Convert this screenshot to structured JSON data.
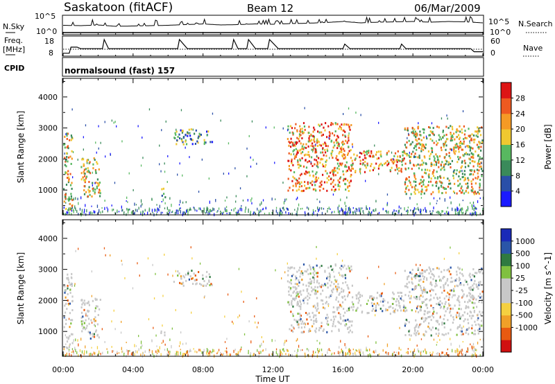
{
  "header": {
    "station": "Saskatoon (fitACF)",
    "beam": "Beam 12",
    "date": "06/Mar/2009"
  },
  "labels": {
    "nsky": "N.Sky",
    "nsearch": "N.Search",
    "freq_line1": "Freq.",
    "freq_line2": "[MHz]",
    "nave": "Nave",
    "cpid": "CPID",
    "cpid_value": "normalsound (fast) 157",
    "noise_ticks_left": [
      "10^5",
      "10^0"
    ],
    "noise_ticks_right": [
      "10^5",
      "10^0"
    ],
    "freq_ticks": [
      "18",
      "8"
    ],
    "nave_ticks": [
      "60",
      "0"
    ]
  },
  "colors": {
    "power": [
      "#1a1aff",
      "#2a4fa8",
      "#3a8a5a",
      "#58b860",
      "#f0c830",
      "#f59a25",
      "#ee5a20",
      "#dd1515"
    ],
    "velocity_bar": [
      "#d01010",
      "#e85a10",
      "#f0a028",
      "#f5d040",
      "#c8c8c8",
      "#c8c8c8",
      "#80c040",
      "#2f7a40",
      "#2a55a8",
      "#1a2ab8"
    ]
  },
  "chart_data": [
    {
      "type": "line",
      "title": "N.Sky / N.Search",
      "ylabel": "N.Sky",
      "log_scale": true,
      "yticks": [
        "10^5",
        "10^0"
      ],
      "x_range_ut_hours": [
        0,
        24
      ],
      "series": [
        {
          "name": "N.Sky",
          "x": [
            0,
            1,
            2,
            3,
            4,
            5,
            6,
            7,
            8,
            9,
            10,
            11,
            12,
            13,
            14,
            15,
            16,
            17,
            18,
            19,
            20,
            21,
            22,
            23,
            24
          ],
          "values": [
            2.5,
            2.4,
            2.6,
            2.2,
            2.3,
            2.4,
            2.5,
            2.7,
            2.9,
            2.6,
            2.7,
            2.9,
            2.8,
            3.0,
            3.1,
            3.3,
            3.6,
            3.2,
            3.4,
            3.5,
            3.6,
            3.4,
            3.6,
            3.5,
            3.2
          ]
        },
        {
          "name": "N.Search",
          "x": [
            0,
            1,
            2,
            3,
            4,
            5,
            6,
            7,
            8,
            9,
            10,
            11,
            12,
            13,
            14,
            15,
            16,
            17,
            18,
            19,
            20,
            21,
            22,
            23,
            24
          ],
          "values": [
            0.4,
            0.4,
            0.4,
            0.4,
            0.4,
            0.4,
            0.4,
            0.4,
            0.4,
            0.4,
            0.4,
            0.4,
            0.4,
            0.4,
            0.4,
            0.4,
            0.4,
            0.4,
            0.4,
            0.4,
            0.4,
            0.4,
            0.4,
            0.4,
            0.4
          ]
        }
      ]
    },
    {
      "type": "line",
      "ylabel": "Freq. [MHz]",
      "yticks_left": [
        "18",
        "8"
      ],
      "yticks_right": [
        "60",
        "0"
      ],
      "series": [
        {
          "name": "Freq.",
          "x": [
            0,
            0.35,
            0.45,
            0.8,
            1.0,
            2.25,
            2.35,
            2.6,
            6.55,
            6.65,
            7.1,
            9.65,
            9.75,
            10.0,
            10.5,
            10.6,
            11.0,
            11.7,
            11.8,
            12.3,
            16.0,
            16.1,
            16.4,
            19.25,
            19.35,
            19.6,
            22.4,
            22.5,
            23.3,
            23.5,
            24.0
          ],
          "values": [
            9,
            9,
            13,
            13,
            12,
            12,
            18,
            12,
            12,
            18,
            12,
            12,
            18,
            12,
            12,
            18,
            12,
            12,
            18,
            12,
            12,
            15,
            12,
            12,
            15,
            12,
            12,
            12,
            12,
            10,
            10
          ]
        },
        {
          "name": "Nave",
          "x": [
            0,
            24
          ],
          "values": [
            25,
            25
          ]
        }
      ]
    },
    {
      "type": "heatmap",
      "ylabel": "Slant Range [km]",
      "colorbar_label": "Power [dB]",
      "colorbar_ticks": [
        4,
        8,
        12,
        16,
        20,
        24,
        28
      ],
      "colorbar_range": [
        0,
        32
      ],
      "yticks": [
        1000,
        2000,
        3000,
        4000
      ],
      "ylim": [
        200,
        4600
      ],
      "x_range_ut_hours": [
        0,
        24
      ],
      "echo_regions": [
        {
          "t": [
            0.0,
            0.5
          ],
          "r": [
            400,
            2900
          ],
          "power": 16
        },
        {
          "t": [
            1.0,
            2.1
          ],
          "r": [
            800,
            2100
          ],
          "power": 18
        },
        {
          "t": [
            5.5,
            5.8
          ],
          "r": [
            800,
            1100
          ],
          "power": 10
        },
        {
          "t": [
            6.3,
            8.5
          ],
          "r": [
            2500,
            3000
          ],
          "power": 8
        },
        {
          "t": [
            12.8,
            16.5
          ],
          "r": [
            1000,
            3200
          ],
          "power": 20
        },
        {
          "t": [
            16.5,
            19.5
          ],
          "r": [
            1600,
            2300
          ],
          "power": 20
        },
        {
          "t": [
            19.5,
            24.0
          ],
          "r": [
            900,
            3100
          ],
          "power": 18
        }
      ]
    },
    {
      "type": "heatmap",
      "ylabel": "Slant Range [km]",
      "colorbar_label": "Velocity [m s^-1]",
      "colorbar_ticks": [
        "1000",
        "500",
        "100",
        "25",
        "-25",
        "-100",
        "-500",
        "-1000"
      ],
      "yticks": [
        1000,
        2000,
        3000,
        4000
      ],
      "ylim": [
        200,
        4600
      ],
      "x_range_ut_hours": [
        0,
        24
      ],
      "xticks": [
        "00:00",
        "04:00",
        "08:00",
        "12:00",
        "16:00",
        "20:00",
        "00:00"
      ],
      "xlabel": "Time UT"
    }
  ]
}
